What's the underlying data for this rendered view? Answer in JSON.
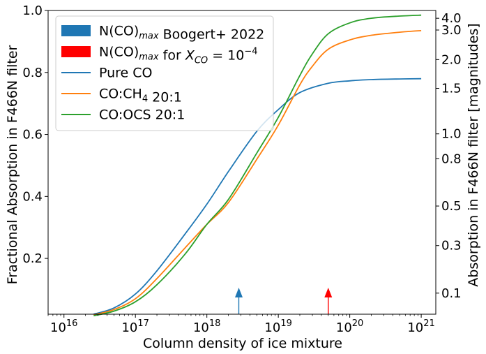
{
  "chart_data": {
    "type": "line",
    "xlabel": "Column density of ice mixture",
    "ylabel": "Fractional Absorption in F466N filter",
    "y2label": "Absorption in F466N filter [magnitudes]",
    "xscale": "log",
    "xlim": [
      6000000000000000.0,
      1.6e+21
    ],
    "ylim": [
      0.02,
      1.0
    ],
    "grid": false,
    "legend_position": "upper-left",
    "x_tick_labels": [
      {
        "exp": 16,
        "text": "10",
        "sup": "16"
      },
      {
        "exp": 17,
        "text": "10",
        "sup": "17"
      },
      {
        "exp": 18,
        "text": "10",
        "sup": "18"
      },
      {
        "exp": 19,
        "text": "10",
        "sup": "19"
      },
      {
        "exp": 20,
        "text": "10",
        "sup": "20"
      },
      {
        "exp": 21,
        "text": "10",
        "sup": "21"
      }
    ],
    "y_ticks": [
      0.2,
      0.4,
      0.6,
      0.8,
      1.0
    ],
    "y_tick_labels": [
      "0.2",
      "0.4",
      "0.6",
      "0.8",
      "1.0"
    ],
    "y2_ticks": [
      0.1,
      0.3,
      0.5,
      0.8,
      1.0,
      1.5,
      2.0,
      3.0,
      4.0
    ],
    "y2_tick_labels": [
      "0.1",
      "0.3",
      "0.5",
      "0.8",
      "1.0",
      "1.5",
      "2.0",
      "3.0",
      "4.0"
    ],
    "series": [
      {
        "name": "Pure CO",
        "color": "#1f77b4",
        "x": [
          2.6e+16,
          5e+16,
          1e+17,
          2e+17,
          5e+17,
          1e+18,
          2e+18,
          5e+18,
          1e+19,
          2e+19,
          5e+19,
          1e+20,
          2e+20,
          5e+20,
          1e+21
        ],
        "y": [
          0.02,
          0.04,
          0.085,
          0.16,
          0.28,
          0.375,
          0.48,
          0.61,
          0.68,
          0.735,
          0.765,
          0.773,
          0.777,
          0.779,
          0.78
        ]
      },
      {
        "name": "CO:CH4 20:1",
        "color": "#ff7f0e",
        "x": [
          2.6e+16,
          5e+16,
          1e+17,
          2e+17,
          5e+17,
          1e+18,
          2e+18,
          5e+18,
          1e+19,
          2e+19,
          3e+19,
          5e+19,
          1e+20,
          2e+20,
          5e+20,
          1e+21
        ],
        "y": [
          0.018,
          0.035,
          0.07,
          0.135,
          0.235,
          0.31,
          0.38,
          0.52,
          0.63,
          0.76,
          0.82,
          0.875,
          0.905,
          0.92,
          0.93,
          0.935
        ]
      },
      {
        "name": "CO:OCS 20:1",
        "color": "#2ca02c",
        "x": [
          2.6e+16,
          5e+16,
          1e+17,
          2e+17,
          5e+17,
          1e+18,
          2e+18,
          5e+18,
          1e+19,
          2e+19,
          3e+19,
          5e+19,
          1e+20,
          2e+20,
          5e+20,
          1e+21
        ],
        "y": [
          0.015,
          0.03,
          0.06,
          0.115,
          0.215,
          0.31,
          0.39,
          0.54,
          0.655,
          0.79,
          0.86,
          0.925,
          0.96,
          0.975,
          0.982,
          0.985
        ]
      }
    ],
    "markers": [
      {
        "name": "N(CO)max Boogert+ 2022",
        "color": "#1f77b4",
        "x": 2.8e+18
      },
      {
        "name": "N(CO)max for XCO = 1e-4",
        "color": "#ff0000",
        "x": 5e+19
      }
    ],
    "legend": [
      {
        "kind": "patch",
        "color": "#1f77b4",
        "text": "N(CO)",
        "sub": "max",
        "tail": " Boogert+ 2022"
      },
      {
        "kind": "patch",
        "color": "#ff0000",
        "text": "N(CO)",
        "sub": "max",
        "tail": " for ",
        "math_var": "X",
        "math_sub": "CO",
        "math_tail": " = 10",
        "math_sup": "−4"
      },
      {
        "kind": "line",
        "color": "#1f77b4",
        "text": "Pure CO"
      },
      {
        "kind": "line",
        "color": "#ff7f0e",
        "text": "CO:CH",
        "sub": "4",
        "tail": " 20:1"
      },
      {
        "kind": "line",
        "color": "#2ca02c",
        "text": "CO:OCS 20:1"
      }
    ]
  }
}
